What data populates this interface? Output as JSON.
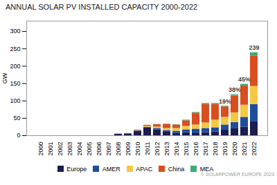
{
  "chart_data": {
    "type": "bar",
    "stacked": true,
    "title": "ANNUAL SOLAR PV INSTALLED CAPACITY 2000-2022",
    "ylabel": "GW",
    "caption": "© SOLARPOWER EUROPE 2023",
    "categories": [
      "2000",
      "2001",
      "2002",
      "2003",
      "2004",
      "2005",
      "2006",
      "2007",
      "2008",
      "2009",
      "2010",
      "2011",
      "2012",
      "2013",
      "2014",
      "2015",
      "2016",
      "2017",
      "2018",
      "2019",
      "2020",
      "2021",
      "2022"
    ],
    "series": [
      {
        "name": "Europe",
        "color": "#1c1c50",
        "values": [
          0.1,
          0.1,
          0.1,
          0.1,
          0.1,
          0.1,
          0.1,
          0.1,
          4.5,
          5.5,
          13,
          22,
          17,
          10,
          7,
          9,
          6,
          9,
          11,
          16,
          20,
          25,
          40
        ]
      },
      {
        "name": "AMER",
        "color": "#1e4d9b",
        "values": [
          0.0,
          0.0,
          0.0,
          0.0,
          0.0,
          0.0,
          0.0,
          0.0,
          0.1,
          0.2,
          1,
          2,
          4,
          5,
          6,
          8,
          13,
          12,
          12,
          15,
          18,
          28,
          50
        ]
      },
      {
        "name": "APAC",
        "color": "#f5c842",
        "values": [
          0.0,
          0.0,
          0.0,
          0.0,
          0.0,
          0.1,
          0.1,
          0.1,
          0.2,
          0.3,
          1,
          3,
          4,
          6,
          8,
          10,
          12,
          16,
          22,
          22,
          28,
          35,
          52
        ]
      },
      {
        "name": "China",
        "color": "#d94e1f",
        "values": [
          0.0,
          0.0,
          0.0,
          0.0,
          0.0,
          0.0,
          0.0,
          0.0,
          0.0,
          0.1,
          1.5,
          3,
          7,
          12,
          10,
          16,
          34,
          53,
          45,
          30,
          48,
          55,
          87
        ]
      },
      {
        "name": "MEA",
        "color": "#3daa78",
        "values": [
          0.0,
          0.0,
          0.0,
          0.0,
          0.0,
          0.0,
          0.0,
          0.0,
          0.0,
          0.0,
          0.0,
          0.1,
          0.2,
          0.5,
          1,
          2,
          2,
          3,
          3,
          2,
          4,
          5,
          10
        ]
      }
    ],
    "annotations": [
      {
        "x": "2019",
        "text": "19%"
      },
      {
        "x": "2020",
        "text": "38%"
      },
      {
        "x": "2021",
        "text": "45%"
      },
      {
        "x": "2022",
        "text": "239"
      }
    ],
    "ylim": [
      0,
      330
    ],
    "yticks": [
      0,
      50,
      100,
      150,
      200,
      250,
      300
    ],
    "grid": false,
    "legend": "bottom"
  }
}
